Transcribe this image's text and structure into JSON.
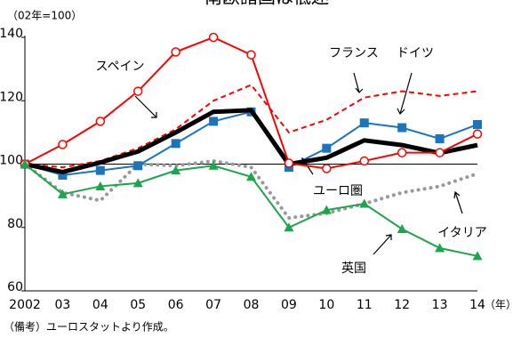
{
  "chart_data": {
    "type": "line",
    "title": "南欧諸国は低迷",
    "y_unit_label": "（02年=100）",
    "x_unit_label": "（年）",
    "note": "（備考）ユーロスタットより作成。",
    "categories": [
      "2002",
      "03",
      "04",
      "05",
      "06",
      "07",
      "08",
      "09",
      "10",
      "11",
      "12",
      "13",
      "14"
    ],
    "ylim": [
      60,
      140
    ],
    "yticks": [
      60,
      80,
      100,
      120,
      140
    ],
    "reference_line": 100,
    "series": [
      {
        "name": "スペイン",
        "color": "#ff0000",
        "marker": "open-circle",
        "values": [
          100,
          106.2,
          113.5,
          123,
          135.4,
          140,
          134.5,
          100.3,
          98.6,
          101,
          103.6,
          103.6,
          109.5
        ]
      },
      {
        "name": "フランス",
        "color": "#ff0000",
        "dashed": true,
        "values": [
          100,
          99,
          101,
          105,
          111,
          120,
          125,
          110,
          114,
          121,
          123,
          121.5,
          123
        ]
      },
      {
        "name": "ドイツ",
        "color": "#1a75bc",
        "marker": "square",
        "values": [
          100,
          96.5,
          98,
          99.5,
          106.5,
          113.5,
          116.5,
          99,
          105,
          113,
          111.5,
          108,
          112.5
        ]
      },
      {
        "name": "ユーロ圏",
        "color": "#000000",
        "thick": true,
        "values": [
          100,
          97.5,
          100.5,
          104,
          110,
          116.5,
          117,
          100,
          102,
          107.5,
          106,
          103.5,
          106
        ]
      },
      {
        "name": "イタリア",
        "color": "#1aa64a",
        "marker": "triangle",
        "values": [
          100,
          90.5,
          93,
          94,
          98,
          99.5,
          96,
          80,
          85.5,
          87.5,
          79.5,
          73.5,
          71
        ]
      },
      {
        "name": "英国",
        "color": "#999999",
        "dotted": true,
        "values": [
          100,
          91,
          88.5,
          100,
          99.5,
          101,
          99,
          83,
          84.5,
          87.5,
          91,
          93,
          97
        ]
      }
    ]
  }
}
